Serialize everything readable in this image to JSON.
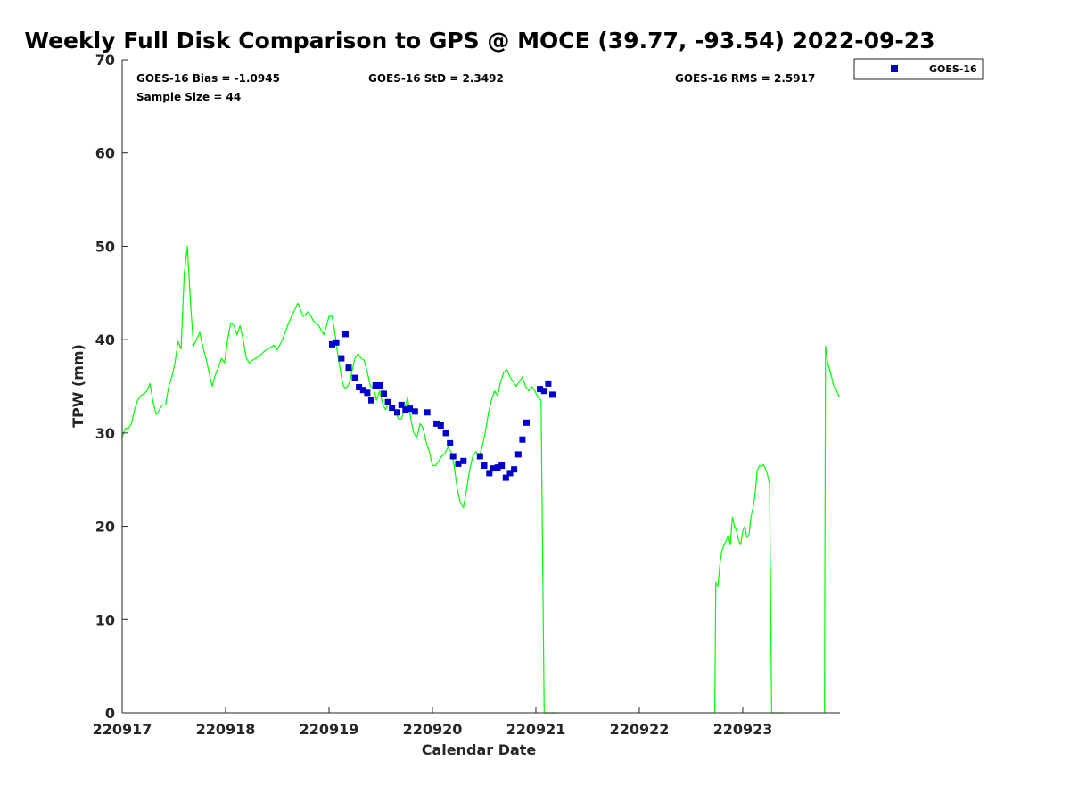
{
  "chart_data": {
    "type": "line",
    "title": "Weekly Full Disk Comparison to GPS @ MOCE (39.77, -93.54) 2022-09-23",
    "xlabel": "Calendar Date",
    "ylabel": "TPW (mm)",
    "xlim": [
      0,
      6.94
    ],
    "ylim": [
      0,
      70
    ],
    "x_ticks": [
      {
        "value": 0,
        "label": "220917"
      },
      {
        "value": 1,
        "label": "220918"
      },
      {
        "value": 2,
        "label": "220919"
      },
      {
        "value": 3,
        "label": "220920"
      },
      {
        "value": 4,
        "label": "220921"
      },
      {
        "value": 5,
        "label": "220922"
      },
      {
        "value": 6,
        "label": "220923"
      }
    ],
    "y_ticks": [
      0,
      10,
      20,
      30,
      40,
      50,
      60,
      70
    ],
    "stats": {
      "bias": "GOES-16 Bias = -1.0945",
      "std": "GOES-16 StD = 2.3492",
      "rms": "GOES-16 RMS = 2.5917",
      "sample": "Sample Size = 44"
    },
    "legend": {
      "position": "top-right-outside",
      "label": "GOES-16"
    },
    "colors": {
      "gps_line": "#00ff00",
      "goes_marker": "#0000cc",
      "axes": "#262626"
    },
    "series": [
      {
        "name": "GPS",
        "kind": "line",
        "segments": [
          {
            "x": [
              0.0,
              0.03,
              0.06,
              0.09,
              0.12,
              0.15,
              0.18,
              0.21,
              0.24,
              0.27,
              0.3,
              0.33,
              0.36,
              0.39,
              0.42,
              0.45,
              0.48,
              0.51,
              0.54,
              0.57,
              0.6,
              0.63,
              0.66,
              0.69,
              0.72,
              0.75,
              0.78,
              0.81,
              0.84,
              0.87,
              0.9,
              0.93,
              0.96,
              0.99,
              1.02,
              1.05,
              1.08,
              1.11,
              1.14,
              1.17,
              1.2,
              1.23,
              1.26,
              1.29,
              1.32,
              1.35,
              1.38,
              1.41,
              1.44,
              1.47,
              1.5,
              1.55,
              1.6,
              1.65,
              1.7,
              1.75,
              1.8,
              1.85,
              1.9,
              1.95,
              2.0,
              2.03,
              2.06,
              2.09,
              2.12,
              2.14,
              2.16,
              2.18,
              2.2,
              2.22,
              2.25,
              2.28,
              2.31,
              2.34,
              2.37,
              2.4,
              2.43,
              2.46,
              2.49,
              2.52,
              2.55,
              2.58,
              2.61,
              2.64,
              2.67,
              2.7,
              2.73,
              2.76,
              2.79,
              2.82,
              2.85,
              2.88,
              2.91,
              2.94,
              2.97,
              3.0,
              3.03,
              3.06,
              3.09,
              3.12,
              3.15,
              3.18,
              3.21,
              3.24,
              3.27,
              3.3,
              3.33,
              3.36,
              3.39,
              3.42,
              3.45,
              3.48,
              3.51,
              3.54,
              3.57,
              3.6,
              3.63,
              3.66,
              3.69,
              3.72,
              3.75,
              3.78,
              3.81,
              3.84,
              3.87,
              3.9,
              3.93,
              3.96,
              3.99,
              4.02,
              4.05,
              4.08,
              4.11,
              4.14,
              4.17,
              4.2,
              4.21
            ],
            "y": [
              29.5,
              30.5,
              30.5,
              31.0,
              32.5,
              33.5,
              34.0,
              34.2,
              34.5,
              35.3,
              33.2,
              32.0,
              32.5,
              33.0,
              33.0,
              35.0,
              36.0,
              37.5,
              39.8,
              39.0,
              47.0,
              50.0,
              44.0,
              39.3,
              40.0,
              40.8,
              39.2,
              38.0,
              36.5,
              35.0,
              36.2,
              37.0,
              38.0,
              37.5,
              40.0,
              41.8,
              41.5,
              40.5,
              41.5,
              40.0,
              38.0,
              37.5,
              37.8,
              38.0,
              38.2,
              38.5,
              38.8,
              39.0,
              39.2,
              39.4,
              38.9,
              40.0,
              41.5,
              42.8,
              43.9,
              42.5,
              43.0,
              42.0,
              41.5,
              40.5,
              42.5,
              42.5,
              40.5,
              38.0,
              36.0,
              35.0,
              34.8,
              35.0,
              35.5,
              36.5,
              38.0,
              38.5,
              38.0,
              37.8,
              36.5,
              35.0,
              34.8,
              33.5,
              34.5,
              33.0,
              32.5,
              33.5,
              32.5,
              32.5,
              31.5,
              31.5,
              32.5,
              33.8,
              31.5,
              30.0,
              29.5,
              31.0,
              30.5,
              29.0,
              28.0,
              26.5,
              26.5,
              27.0,
              27.5,
              27.8,
              28.5,
              28.0,
              26.5,
              24.0,
              22.5,
              22.0,
              24.0,
              26.0,
              27.5,
              28.0,
              27.5,
              28.5,
              30.0,
              32.0,
              33.5,
              34.5,
              34.0,
              35.5,
              36.5,
              36.8,
              36.0,
              35.5,
              35.0,
              35.5,
              36.0,
              35.0,
              34.5,
              35.0,
              34.5,
              33.8,
              33.5,
              0.0,
              0.0,
              0.0,
              0.0,
              0.0,
              0.0
            ]
          },
          {
            "x": [
              5.73,
              5.74,
              5.76,
              5.78,
              5.8,
              5.82,
              5.84,
              5.86,
              5.88,
              5.9,
              5.92,
              5.94,
              5.96,
              5.98,
              6.0,
              6.02,
              6.04,
              6.06,
              6.08,
              6.1,
              6.12,
              6.14,
              6.16,
              6.18,
              6.2,
              6.22,
              6.24,
              6.26,
              6.28,
              6.3,
              6.32,
              6.34,
              6.36,
              6.38,
              6.39,
              6.4
            ],
            "y": [
              0.0,
              14.0,
              13.5,
              16.0,
              17.5,
              18.0,
              18.5,
              19.0,
              18.0,
              21.0,
              20.0,
              19.5,
              18.5,
              18.0,
              19.5,
              20.0,
              18.8,
              19.0,
              21.0,
              22.0,
              23.5,
              26.0,
              26.5,
              26.4,
              26.6,
              26.2,
              25.5,
              24.5,
              0.0,
              0.0,
              0.0,
              0.0,
              0.0,
              0.0,
              0.0,
              0.0
            ]
          },
          {
            "x": [
              6.79,
              6.8,
              6.82,
              6.84,
              6.86,
              6.88,
              6.9,
              6.92,
              6.94
            ],
            "y": [
              0.0,
              39.3,
              37.5,
              36.8,
              36.0,
              35.0,
              34.8,
              34.2,
              33.8
            ]
          }
        ]
      },
      {
        "name": "GOES-16",
        "kind": "scatter",
        "x": [
          2.03,
          2.07,
          2.12,
          2.16,
          2.19,
          2.25,
          2.29,
          2.33,
          2.37,
          2.41,
          2.45,
          2.49,
          2.53,
          2.57,
          2.61,
          2.66,
          2.7,
          2.74,
          2.78,
          2.83,
          2.95,
          3.04,
          3.08,
          3.13,
          3.17,
          3.2,
          3.25,
          3.3,
          3.46,
          3.5,
          3.55,
          3.59,
          3.63,
          3.67,
          3.71,
          3.75,
          3.79,
          3.83,
          3.87,
          3.91,
          4.04,
          4.08,
          4.12,
          4.16
        ],
        "y": [
          39.5,
          39.7,
          38.0,
          40.6,
          37.0,
          35.9,
          34.9,
          34.6,
          34.3,
          33.5,
          35.1,
          35.1,
          34.2,
          33.3,
          32.7,
          32.2,
          33.0,
          32.5,
          32.6,
          32.3,
          32.2,
          31.0,
          30.8,
          30.0,
          28.9,
          27.5,
          26.7,
          27.0,
          27.5,
          26.5,
          25.7,
          26.2,
          26.3,
          26.5,
          25.2,
          25.7,
          26.1,
          27.7,
          29.3,
          31.1,
          34.7,
          34.5,
          35.3,
          34.1
        ]
      }
    ]
  }
}
